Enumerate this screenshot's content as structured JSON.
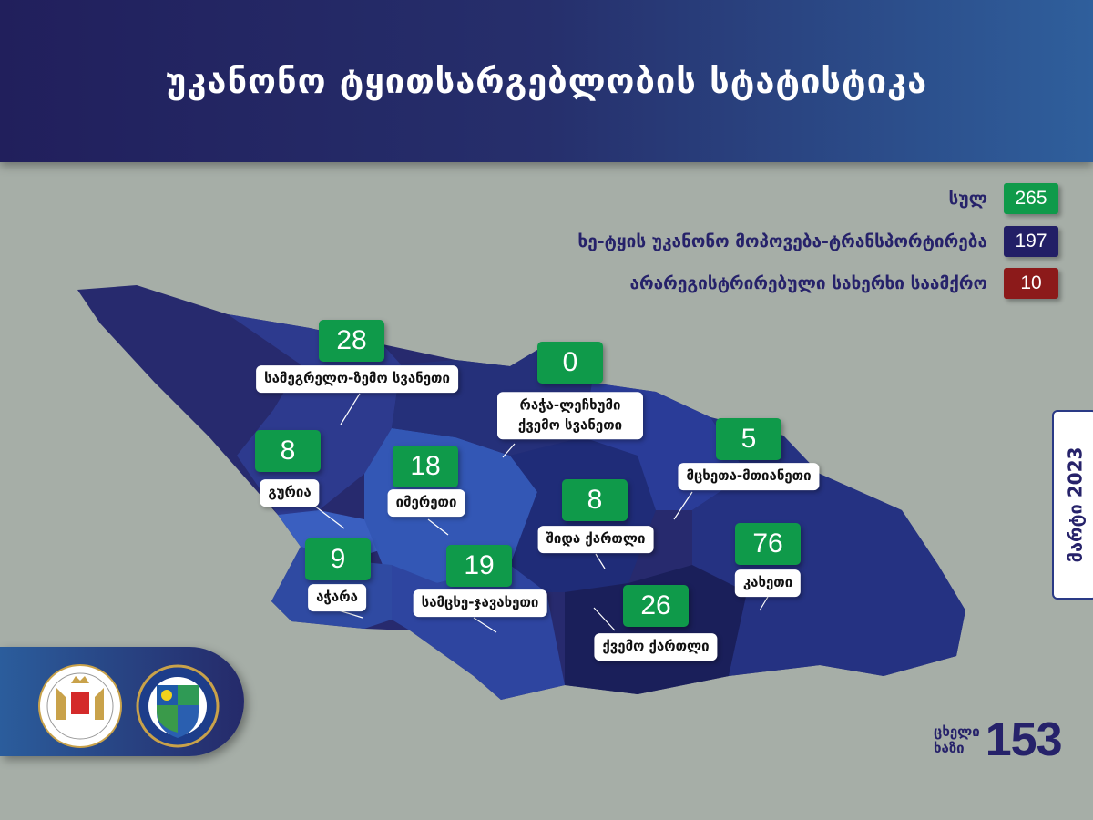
{
  "header": {
    "title": "უკანონო ტყითსარგებლობის სტატისტიკა"
  },
  "legend": [
    {
      "label": "სულ",
      "value": "265",
      "color": "#0f9a4a"
    },
    {
      "label": "ხე-ტყის უკანონო მოპოვება-ტრანსპორტირება",
      "value": "197",
      "color": "#221f66"
    },
    {
      "label": "არარეგისტრირებული სახერხი საამქრო",
      "value": "10",
      "color": "#8c1a1a"
    }
  ],
  "regions": [
    {
      "name": "სამეგრელო-ზემო სვანეთი",
      "value": "28"
    },
    {
      "name": "რაჭა-ლეჩხუმი ქვემო სვანეთი",
      "value": "0"
    },
    {
      "name": "გურია",
      "value": "8"
    },
    {
      "name": "იმერეთი",
      "value": "18"
    },
    {
      "name": "მცხეთა-მთიანეთი",
      "value": "5"
    },
    {
      "name": "შიდა ქართლი",
      "value": "8"
    },
    {
      "name": "აჭარა",
      "value": "9"
    },
    {
      "name": "სამცხე-ჯავახეთი",
      "value": "19"
    },
    {
      "name": "ქვემო ქართლი",
      "value": "26"
    },
    {
      "name": "კახეთი",
      "value": "76"
    }
  ],
  "date": "მარტი 2023",
  "hotline": {
    "label_line1": "ცხელი",
    "label_line2": "ხაზი",
    "number": "153"
  },
  "logos": [
    "Ministry of Environmental Protection and Agriculture of Georgia",
    "ეროვნული სატყეო სააგენტო"
  ]
}
